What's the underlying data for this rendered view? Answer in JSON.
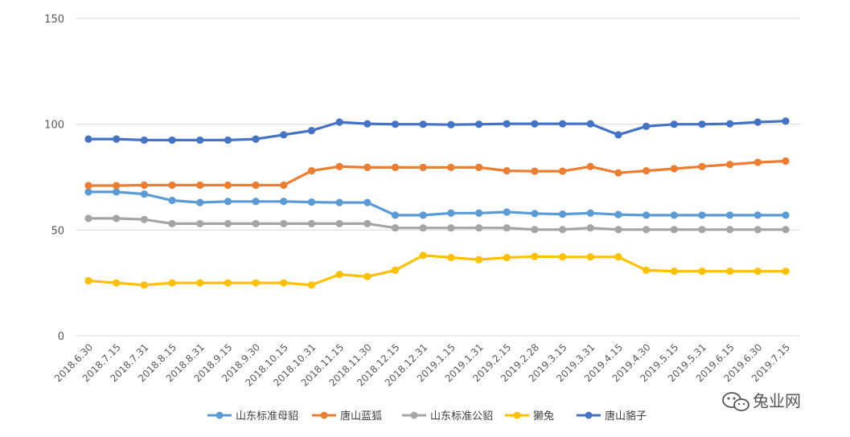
{
  "watermark": {
    "icon": "wechat-icon",
    "text": "兔业网"
  },
  "chart_data": {
    "type": "line",
    "title": "",
    "xlabel": "",
    "ylabel": "",
    "ylim": [
      0,
      150
    ],
    "yticks": [
      0,
      50,
      100,
      150
    ],
    "grid": true,
    "legend_position": "bottom",
    "categories": [
      "2018.6.30",
      "2018.7.15",
      "2018.7.31",
      "2018.8.15",
      "2018.8.31",
      "2018.9.15",
      "2018.9.30",
      "2018.10.15",
      "2018.10.31",
      "2018.11.15",
      "2018.11.30",
      "2018.12.15",
      "2018.12.31",
      "2019.1.15",
      "2019.1.31",
      "2019.2.15",
      "2019.2.28",
      "2019.3.15",
      "2019.3.31",
      "2019.4.15",
      "2019.4.30",
      "2019.5.15",
      "2019.5.31",
      "2019.6.15",
      "2019.6.30",
      "2019.7.15"
    ],
    "series": [
      {
        "name": "山东标准母貂",
        "color": "#5b9bd5",
        "values": [
          68,
          68,
          67,
          64,
          63,
          63.5,
          63.5,
          63.5,
          63.2,
          63,
          63,
          57,
          57,
          58,
          58,
          58.5,
          57.8,
          57.5,
          58,
          57.3,
          57,
          57,
          57,
          57,
          57,
          57
        ]
      },
      {
        "name": "唐山蓝狐",
        "color": "#ed7d31",
        "values": [
          71,
          71,
          71.2,
          71.2,
          71.2,
          71.2,
          71.2,
          71.2,
          78,
          80,
          79.6,
          79.6,
          79.6,
          79.6,
          79.6,
          78,
          77.8,
          77.8,
          80,
          77,
          78,
          79,
          80,
          81,
          82,
          82.6
        ]
      },
      {
        "name": "山东标准公貂",
        "color": "#a5a5a5",
        "values": [
          55.5,
          55.5,
          55,
          53,
          53,
          53,
          53,
          53,
          53,
          53,
          53,
          51,
          51,
          51,
          51,
          51,
          50.2,
          50.2,
          51,
          50.2,
          50.2,
          50.2,
          50.2,
          50.2,
          50.2,
          50.2
        ]
      },
      {
        "name": "獭兔",
        "color": "#ffc000",
        "values": [
          26,
          25,
          24,
          25,
          25,
          25,
          25,
          25,
          24,
          29,
          28,
          31,
          38,
          37,
          36,
          37,
          37.5,
          37.3,
          37.3,
          37.3,
          31,
          30.5,
          30.5,
          30.5,
          30.5,
          30.5
        ]
      },
      {
        "name": "唐山貉子",
        "color": "#4472c4",
        "values": [
          93,
          93,
          92.5,
          92.5,
          92.5,
          92.5,
          93,
          95,
          97,
          101,
          100.2,
          100,
          100,
          99.8,
          100,
          100.2,
          100.2,
          100.2,
          100.2,
          95,
          99,
          100,
          100,
          100.2,
          101,
          101.5
        ]
      }
    ]
  }
}
